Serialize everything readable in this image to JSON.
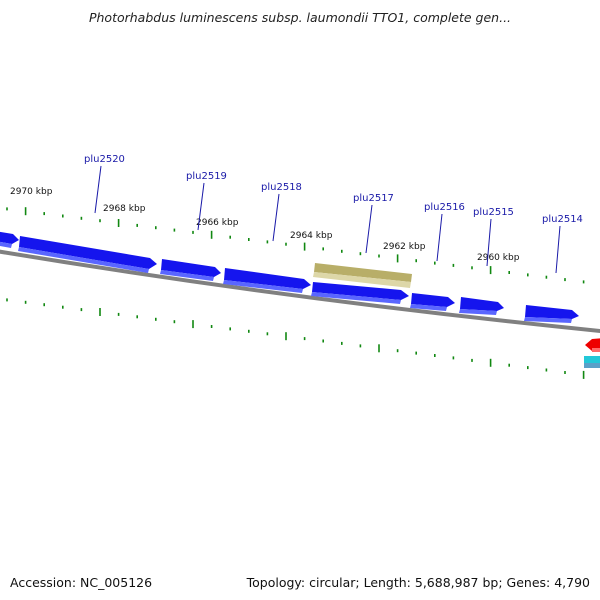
{
  "header": {
    "title": "Photorhabdus luminescens subsp. laumondii TTO1, complete gen..."
  },
  "footer": {
    "accession": "Accession: NC_005126",
    "summary": "Topology: circular; Length: 5,688,987 bp; Genes: 4,790"
  },
  "map": {
    "scale_labels": [
      "2970 kbp",
      "2968 kbp",
      "2966 kbp",
      "2964 kbp",
      "2962 kbp",
      "2960 kbp"
    ],
    "gene_labels": [
      "plu2520",
      "plu2519",
      "plu2518",
      "plu2517",
      "plu2516",
      "plu2515",
      "plu2514"
    ],
    "colors": {
      "gene": "#1515ee",
      "gene_shade": "#5a66ff",
      "highlight": "#b8ae68",
      "highlight_shade": "#ddd7a8",
      "backbone": "#808080",
      "tick": "#118811",
      "red_feature": "#ee0000",
      "cyan_feature": "#22c8d8",
      "label": "#1a1aa8"
    }
  }
}
